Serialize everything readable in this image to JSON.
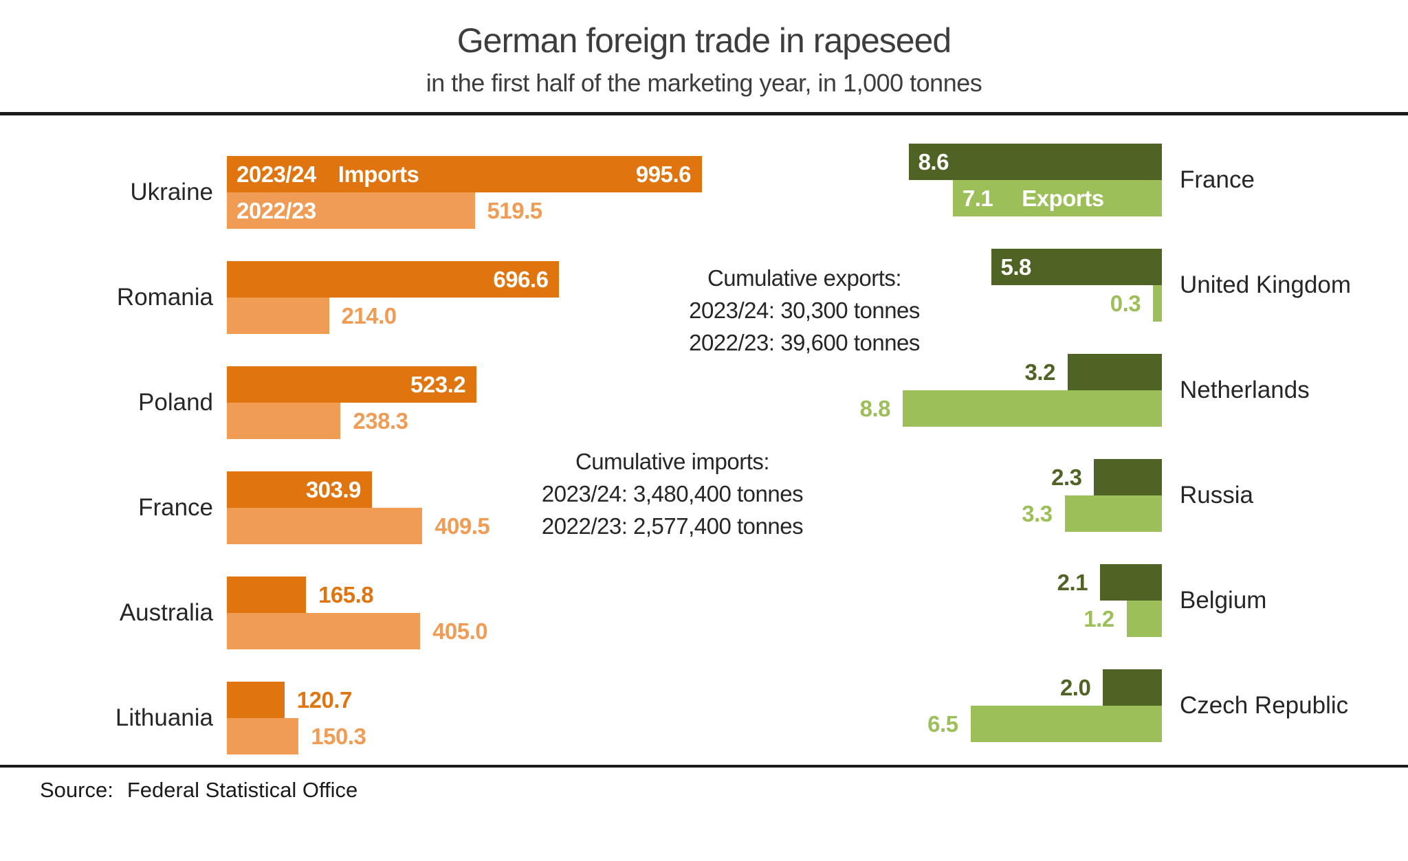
{
  "page": {
    "title": "German foreign trade in rapeseed",
    "subtitle": "in the first half of the marketing year, in 1,000 tonnes",
    "source_label": "Source:",
    "source_value": "Federal Statistical Office"
  },
  "colors": {
    "imports_current": "#e0750f",
    "imports_previous": "#f09c55",
    "exports_current": "#4e6324",
    "exports_previous": "#9dbf59",
    "rule": "#1a1a1a",
    "text": "#262626"
  },
  "chart_data": {
    "type": "bar",
    "orientation": "horizontal",
    "unit": "1,000 tonnes",
    "title": "German foreign trade in rapeseed",
    "subtitle": "in the first half of the marketing year, in 1,000 tonnes",
    "legend_position": "inside-first-bars",
    "grid": false,
    "imports": {
      "legend": "Imports",
      "season_current": "2023/24",
      "season_previous": "2022/23",
      "categories": [
        "Ukraine",
        "Romania",
        "Poland",
        "France",
        "Australia",
        "Lithuania"
      ],
      "series": [
        {
          "name": "2023/24",
          "values": [
            995.6,
            696.6,
            523.2,
            303.9,
            165.8,
            120.7
          ]
        },
        {
          "name": "2022/23",
          "values": [
            519.5,
            214.0,
            238.3,
            409.5,
            405.0,
            150.3
          ]
        }
      ],
      "rows": [
        {
          "country": "Ukraine",
          "current": "995.6",
          "previous": "519.5",
          "current_inside": true,
          "previous_inside": false
        },
        {
          "country": "Romania",
          "current": "696.6",
          "previous": "214.0",
          "current_inside": true,
          "previous_inside": false
        },
        {
          "country": "Poland",
          "current": "523.2",
          "previous": "238.3",
          "current_inside": true,
          "previous_inside": false
        },
        {
          "country": "France",
          "current": "303.9",
          "previous": "409.5",
          "current_inside": true,
          "previous_inside": false
        },
        {
          "country": "Australia",
          "current": "165.8",
          "previous": "405.0",
          "current_inside": false,
          "previous_inside": false
        },
        {
          "country": "Lithuania",
          "current": "120.7",
          "previous": "150.3",
          "current_inside": false,
          "previous_inside": false
        }
      ]
    },
    "exports": {
      "legend": "Exports",
      "season_current": "2023/24",
      "season_previous": "2022/23",
      "categories": [
        "France",
        "United Kingdom",
        "Netherlands",
        "Russia",
        "Belgium",
        "Czech Republic"
      ],
      "series": [
        {
          "name": "2023/24",
          "values": [
            8.6,
            5.8,
            3.2,
            2.3,
            2.1,
            2.0
          ]
        },
        {
          "name": "2022/23",
          "values": [
            7.1,
            0.3,
            8.8,
            3.3,
            1.2,
            6.5
          ]
        }
      ],
      "rows": [
        {
          "country": "France",
          "current": "8.6",
          "previous": "7.1",
          "current_inside": true,
          "previous_inside": true
        },
        {
          "country": "United Kingdom",
          "current": "5.8",
          "previous": "0.3",
          "current_inside": true,
          "previous_inside": false
        },
        {
          "country": "Netherlands",
          "current": "3.2",
          "previous": "8.8",
          "current_inside": false,
          "previous_inside": false
        },
        {
          "country": "Russia",
          "current": "2.3",
          "previous": "3.3",
          "current_inside": false,
          "previous_inside": false
        },
        {
          "country": "Belgium",
          "current": "2.1",
          "previous": "1.2",
          "current_inside": false,
          "previous_inside": false
        },
        {
          "country": "Czech Republic",
          "current": "2.0",
          "previous": "6.5",
          "current_inside": false,
          "previous_inside": false
        }
      ]
    },
    "annotations": {
      "exports": {
        "heading": "Cumulative exports:",
        "lines": [
          "2023/24: 30,300 tonnes",
          "2022/23: 39,600 tonnes"
        ]
      },
      "imports": {
        "heading": "Cumulative imports:",
        "lines": [
          "2023/24: 3,480,400 tonnes",
          "2022/23: 2,577,400 tonnes"
        ]
      }
    }
  }
}
